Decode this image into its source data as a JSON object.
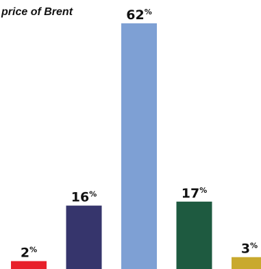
{
  "chart_data": {
    "type": "bar",
    "title": "price of Brent",
    "values": [
      2,
      16,
      62,
      17,
      3
    ],
    "unit": "%",
    "colors": [
      "#e8202a",
      "#36356c",
      "#7ea0d4",
      "#1e5a40",
      "#c9a92e"
    ],
    "ylim": [
      0,
      62
    ]
  }
}
